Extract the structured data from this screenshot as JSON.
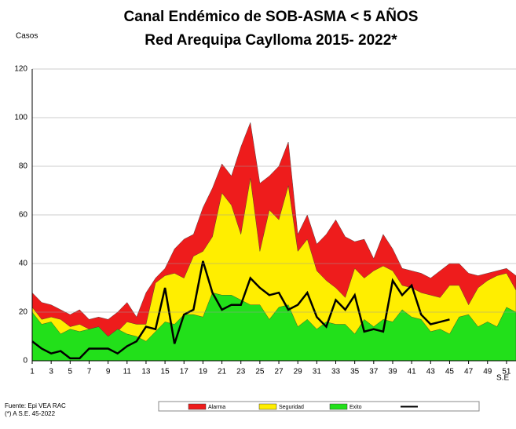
{
  "chart_data": {
    "type": "area",
    "title": "Canal Endémico de SOB-ASMA < 5 AÑOS",
    "subtitle": "Red Arequipa Caylloma 2015- 2022*",
    "y_label": "Casos",
    "x_label": "S.E",
    "source": "Fuente:  Epi VEA RAC",
    "note": "(*) A S.E. 45-2022",
    "x": [
      1,
      2,
      3,
      4,
      5,
      6,
      7,
      8,
      9,
      10,
      11,
      12,
      13,
      14,
      15,
      16,
      17,
      18,
      19,
      20,
      21,
      22,
      23,
      24,
      25,
      26,
      27,
      28,
      29,
      30,
      31,
      32,
      33,
      34,
      35,
      36,
      37,
      38,
      39,
      40,
      41,
      42,
      43,
      44,
      45,
      46,
      47,
      48,
      49,
      50,
      51,
      52
    ],
    "xlim": [
      1,
      52
    ],
    "xticks": [
      1,
      3,
      5,
      7,
      9,
      11,
      13,
      15,
      17,
      19,
      21,
      23,
      25,
      27,
      29,
      31,
      33,
      35,
      37,
      39,
      41,
      43,
      45,
      47,
      49,
      51
    ],
    "ylim": [
      0,
      120
    ],
    "yticks": [
      0,
      20,
      40,
      60,
      80,
      100,
      120
    ],
    "grid": true,
    "series": [
      {
        "name": "Alarma",
        "color": "#ee1c1c",
        "values": [
          28,
          24,
          23,
          21,
          19,
          21,
          17,
          18,
          17,
          20,
          24,
          18,
          28,
          34,
          38,
          46,
          50,
          52,
          63,
          71,
          81,
          76,
          88,
          98,
          73,
          76,
          80,
          90,
          52,
          60,
          48,
          52,
          58,
          51,
          49,
          50,
          42,
          52,
          46,
          38,
          37,
          36,
          34,
          37,
          40,
          40,
          36,
          35,
          36,
          37,
          38,
          35
        ]
      },
      {
        "name": "Seguridad",
        "color": "#ffee00",
        "values": [
          22,
          17,
          18,
          17,
          14,
          15,
          13,
          13,
          10,
          12,
          16,
          15,
          15,
          32,
          35,
          36,
          34,
          43,
          45,
          51,
          69,
          64,
          52,
          75,
          45,
          62,
          58,
          72,
          45,
          50,
          37,
          33,
          30,
          26,
          38,
          34,
          37,
          39,
          37,
          31,
          30,
          28,
          27,
          26,
          31,
          31,
          23,
          30,
          33,
          35,
          36,
          29
        ]
      },
      {
        "name": "Exito",
        "color": "#22e01a",
        "values": [
          20,
          15,
          16,
          11,
          13,
          12,
          13,
          14,
          10,
          13,
          11,
          10,
          8,
          12,
          16,
          15,
          19,
          19,
          18,
          28,
          27,
          27,
          25,
          23,
          23,
          17,
          22,
          23,
          14,
          17,
          13,
          16,
          15,
          15,
          11,
          17,
          14,
          17,
          16,
          21,
          18,
          17,
          12,
          13,
          11,
          18,
          19,
          14,
          16,
          14,
          22,
          20
        ]
      },
      {
        "type": "line",
        "color": "#000000",
        "values": [
          8,
          5,
          3,
          4,
          1,
          1,
          5,
          5,
          5,
          3,
          6,
          8,
          14,
          13,
          30,
          7,
          19,
          21,
          41,
          28,
          21,
          23,
          23,
          34,
          30,
          27,
          28,
          21,
          23,
          28,
          18,
          14,
          25,
          21,
          27,
          12,
          13,
          12,
          33,
          27,
          31,
          19,
          15,
          16,
          17,
          null,
          null,
          null,
          null,
          null,
          null,
          null
        ]
      }
    ]
  }
}
